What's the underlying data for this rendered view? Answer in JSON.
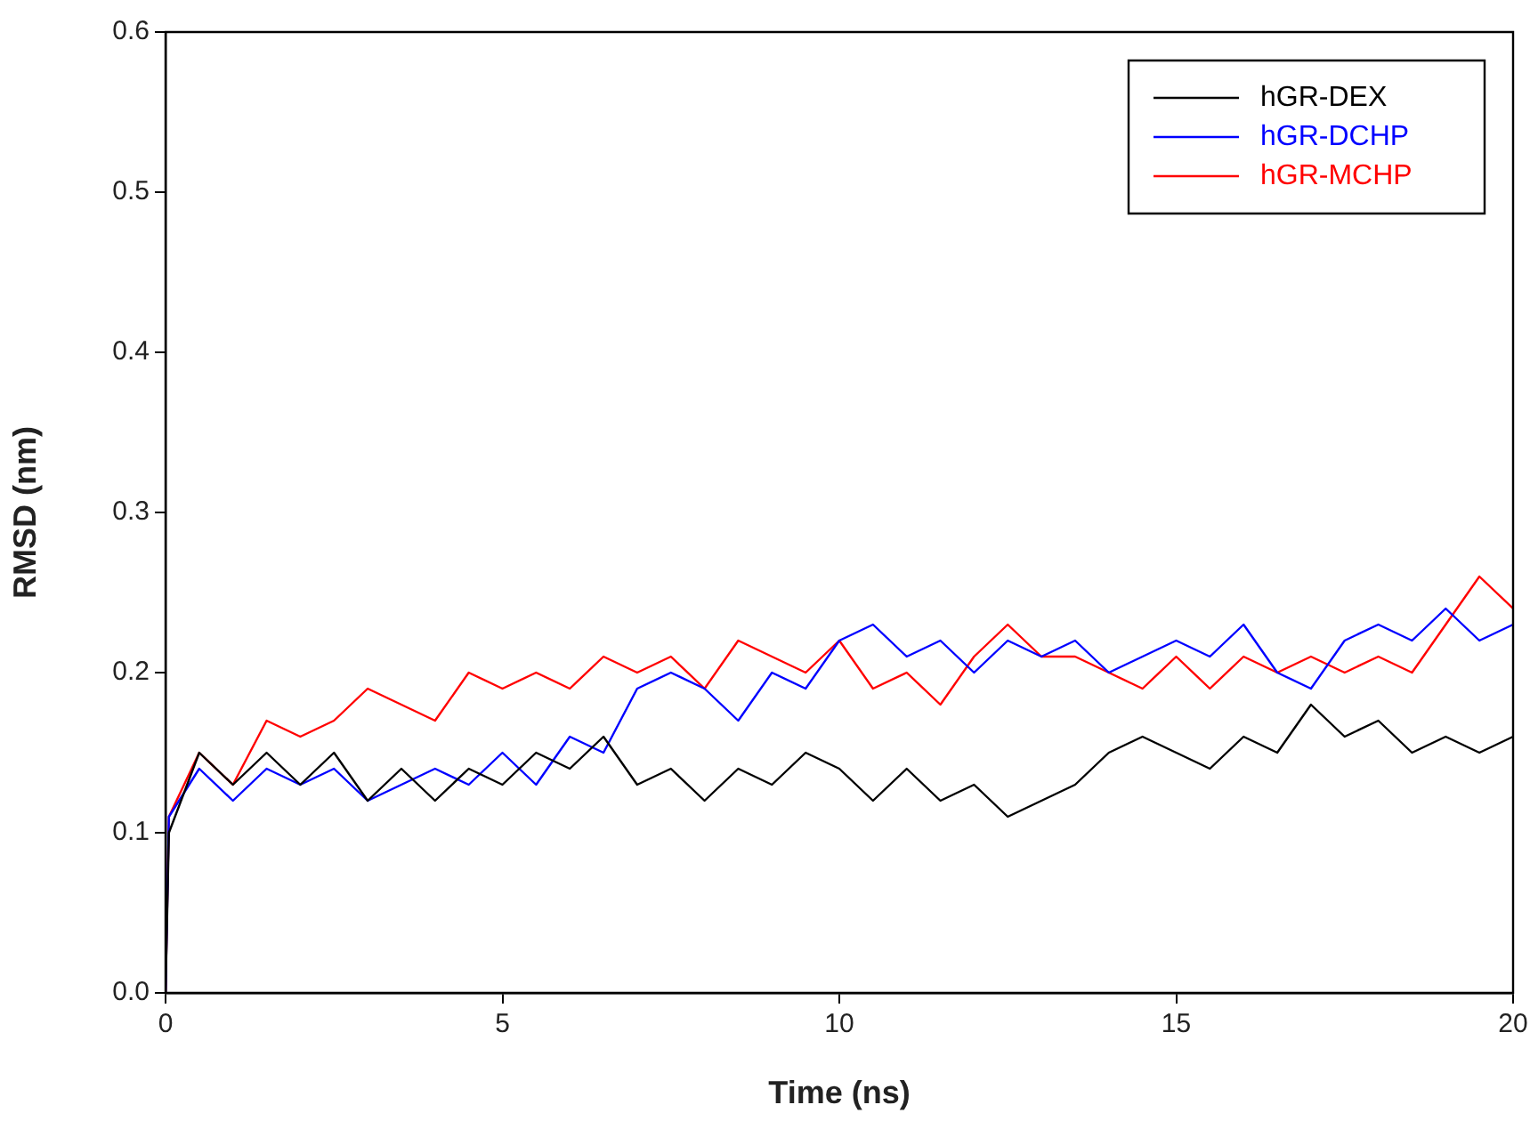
{
  "chart_data": {
    "type": "line",
    "xlabel": "Time (ns)",
    "ylabel": "RMSD (nm)",
    "xlim": [
      0,
      20
    ],
    "xticks": [
      0,
      5,
      10,
      15,
      20
    ],
    "ylim": [
      0,
      0.6
    ],
    "yticks": [
      {
        "value": 0,
        "label": "0.0"
      },
      0.1,
      0.2,
      0.3,
      0.4,
      0.5,
      0.6
    ],
    "grid": false,
    "legend": "top right",
    "marker": "none",
    "line_style": "solid",
    "x": [
      0,
      0.05,
      0.5,
      1,
      1.5,
      2,
      2.5,
      3,
      3.5,
      4,
      4.5,
      5,
      5.5,
      6,
      6.5,
      7,
      7.5,
      8,
      8.5,
      9,
      9.5,
      10,
      10.5,
      11,
      11.5,
      12,
      12.5,
      13,
      13.5,
      14,
      14.5,
      15,
      15.5,
      16,
      16.5,
      17,
      17.5,
      18,
      18.5,
      19,
      19.5,
      20
    ],
    "series": [
      {
        "name": "hGR-DEX",
        "color": "#000000",
        "values": [
          0,
          0.1,
          0.15,
          0.13,
          0.15,
          0.13,
          0.15,
          0.12,
          0.14,
          0.12,
          0.14,
          0.13,
          0.15,
          0.14,
          0.16,
          0.13,
          0.14,
          0.12,
          0.14,
          0.13,
          0.15,
          0.14,
          0.12,
          0.14,
          0.12,
          0.13,
          0.11,
          0.12,
          0.13,
          0.15,
          0.16,
          0.15,
          0.14,
          0.16,
          0.15,
          0.18,
          0.16,
          0.17,
          0.15,
          0.16,
          0.15,
          0.16
        ]
      },
      {
        "name": "hGR-DCHP",
        "color": "#0000ff",
        "values": [
          0,
          0.11,
          0.14,
          0.12,
          0.14,
          0.13,
          0.14,
          0.12,
          0.13,
          0.14,
          0.13,
          0.15,
          0.13,
          0.16,
          0.15,
          0.19,
          0.2,
          0.19,
          0.17,
          0.2,
          0.19,
          0.22,
          0.23,
          0.21,
          0.22,
          0.2,
          0.22,
          0.21,
          0.22,
          0.2,
          0.21,
          0.22,
          0.21,
          0.23,
          0.2,
          0.19,
          0.22,
          0.23,
          0.22,
          0.24,
          0.22,
          0.23
        ]
      },
      {
        "name": "hGR-MCHP",
        "color": "#ff0000",
        "values": [
          0,
          0.11,
          0.15,
          0.13,
          0.17,
          0.16,
          0.17,
          0.19,
          0.18,
          0.17,
          0.2,
          0.19,
          0.2,
          0.19,
          0.21,
          0.2,
          0.21,
          0.19,
          0.22,
          0.21,
          0.2,
          0.22,
          0.19,
          0.2,
          0.18,
          0.21,
          0.23,
          0.21,
          0.21,
          0.2,
          0.19,
          0.21,
          0.19,
          0.21,
          0.2,
          0.21,
          0.2,
          0.21,
          0.2,
          0.23,
          0.26,
          0.24
        ]
      }
    ]
  }
}
